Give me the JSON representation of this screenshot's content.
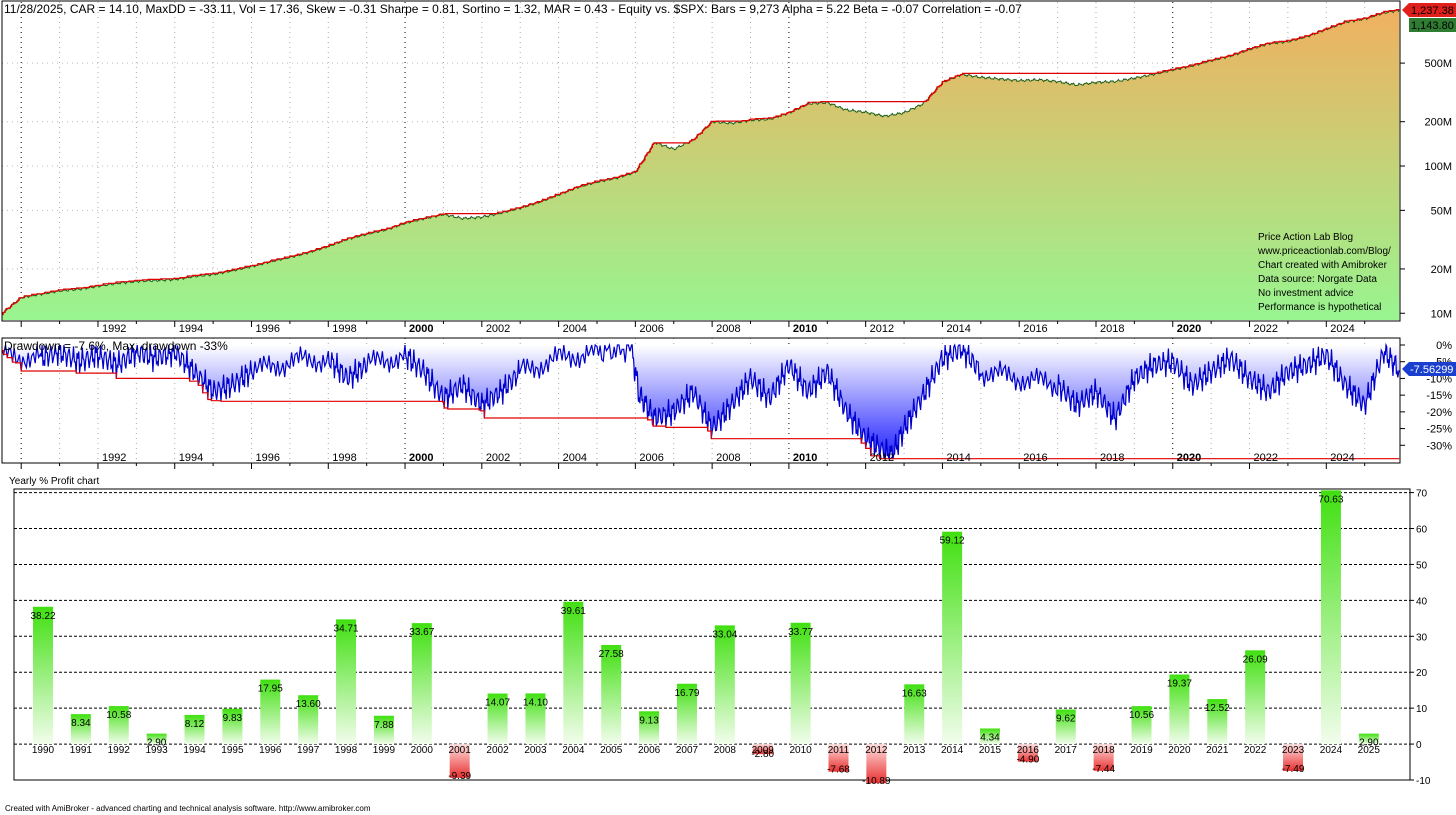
{
  "header": {
    "stats_line": "11/28/2025, CAR = 14.10, MaxDD = -33.11, Vol = 17.36, Skew = -0.31 Sharpe = 0.81, Sortino = 1.32, MAR = 0.43 - Equity vs. $SPX:  Bars = 9,273 Alpha = 5.22 Beta = -0.07 Correlation = -0.07"
  },
  "equity_panel": {
    "price_badges": [
      "1,237.38",
      "1,143.80"
    ],
    "badge_colors": [
      "#e0201a",
      "#2e7d32"
    ],
    "notes": [
      "Price Action Lab Blog",
      "www.priceactionlab.com/Blog/",
      "Chart created with Amibroker",
      "Data source: Norgate Data",
      "No investment advice",
      "Performance is hypothetical"
    ],
    "y_ticks": [
      "500M",
      "200M",
      "100M",
      "50M",
      "20M",
      "10M"
    ],
    "x_ticks": [
      {
        "label": "1992",
        "bold": false
      },
      {
        "label": "1994",
        "bold": false
      },
      {
        "label": "1996",
        "bold": false
      },
      {
        "label": "1998",
        "bold": false
      },
      {
        "label": "2000",
        "bold": true
      },
      {
        "label": "2002",
        "bold": false
      },
      {
        "label": "2004",
        "bold": false
      },
      {
        "label": "2006",
        "bold": false
      },
      {
        "label": "2008",
        "bold": false
      },
      {
        "label": "2010",
        "bold": true
      },
      {
        "label": "2012",
        "bold": false
      },
      {
        "label": "2014",
        "bold": false
      },
      {
        "label": "2016",
        "bold": false
      },
      {
        "label": "2018",
        "bold": false
      },
      {
        "label": "2020",
        "bold": true
      },
      {
        "label": "2022",
        "bold": false
      },
      {
        "label": "2024",
        "bold": false
      }
    ],
    "colors": {
      "area_top": "#f0b060",
      "area_bottom": "#98f590",
      "line": "#1a5e1a",
      "peak": "#e00000"
    }
  },
  "drawdown_panel": {
    "title": "Drawdown = -7.6%, Max. drawdown -33%",
    "value_badge": "-7.56299",
    "y_ticks": [
      "0%",
      "-5%",
      "-10%",
      "-15%",
      "-20%",
      "-25%",
      "-30%"
    ],
    "colors": {
      "line": "#0000cc",
      "fill": "#2020ff",
      "max_line": "#e00000"
    }
  },
  "chart_data": [
    {
      "type": "area",
      "title": "",
      "ylabel": "",
      "x_range": [
        1989.5,
        2025.92
      ],
      "y_scale": "log",
      "ylim": [
        9000000,
        1300000000
      ],
      "series": [
        {
          "x": [
            1989.5,
            1990.0,
            1990.5,
            1991.0,
            1991.5,
            1992.0,
            1992.5,
            1993.0,
            1993.5,
            1994.0,
            1994.5,
            1995.0,
            1995.5,
            1996.0,
            1996.5,
            1997.0,
            1997.5,
            1998.0,
            1998.5,
            1999.0,
            1999.5,
            2000.0,
            2000.5,
            2001.0,
            2001.5,
            2002.0,
            2002.5,
            2003.0,
            2003.5,
            2004.0,
            2004.5,
            2005.0,
            2005.5,
            2006.0,
            2006.5,
            2007.0,
            2007.5,
            2008.0,
            2008.5,
            2009.0,
            2009.5,
            2010.0,
            2010.5,
            2011.0,
            2011.5,
            2012.0,
            2012.5,
            2013.0,
            2013.5,
            2014.0,
            2014.5,
            2015.0,
            2015.5,
            2016.0,
            2016.5,
            2017.0,
            2017.5,
            2018.0,
            2018.5,
            2019.0,
            2019.5,
            2020.0,
            2020.5,
            2021.0,
            2021.5,
            2022.0,
            2022.5,
            2023.0,
            2023.5,
            2024.0,
            2024.5,
            2025.0,
            2025.5,
            2025.9
          ],
          "values": [
            10000000,
            12800000,
            13500000,
            14200000,
            14600000,
            15300000,
            16000000,
            16500000,
            16700000,
            17000000,
            17800000,
            18400000,
            19500000,
            20800000,
            22500000,
            24000000,
            26000000,
            28500000,
            32000000,
            34500000,
            37000000,
            41000000,
            44000000,
            47000000,
            44000000,
            45000000,
            48000000,
            52000000,
            57000000,
            64000000,
            72000000,
            78000000,
            83000000,
            91000000,
            145000000,
            130000000,
            150000000,
            200000000,
            195000000,
            205000000,
            208000000,
            230000000,
            265000000,
            270000000,
            240000000,
            232000000,
            218000000,
            230000000,
            265000000,
            370000000,
            420000000,
            400000000,
            390000000,
            380000000,
            385000000,
            375000000,
            355000000,
            370000000,
            375000000,
            395000000,
            420000000,
            450000000,
            480000000,
            520000000,
            560000000,
            620000000,
            680000000,
            700000000,
            760000000,
            850000000,
            950000000,
            1000000000,
            1100000000,
            1143800000
          ]
        }
      ]
    },
    {
      "type": "area",
      "title": "Drawdown",
      "ylabel": "",
      "ylim": [
        -35,
        0
      ],
      "series": [
        {
          "name": "Drawdown",
          "x": [
            1989.5,
            1990.5,
            1991.0,
            1991.5,
            1992.0,
            1992.5,
            1993.0,
            1993.5,
            1994.0,
            1994.5,
            1995.0,
            1995.5,
            1996.0,
            1997.0,
            1998.0,
            1998.5,
            1999.0,
            2000.0,
            2000.5,
            2001.0,
            2001.5,
            2002.0,
            2002.5,
            2003.0,
            2004.0,
            2005.0,
            2005.9,
            2006.1,
            2006.5,
            2007.0,
            2007.5,
            2008.0,
            2008.5,
            2009.0,
            2009.5,
            2010.0,
            2010.5,
            2011.0,
            2011.5,
            2012.0,
            2012.5,
            2012.7,
            2013.0,
            2013.5,
            2014.0,
            2014.5,
            2015.0,
            2016.0,
            2017.0,
            2017.5,
            2018.0,
            2018.5,
            2019.0,
            2019.5,
            2020.0,
            2020.5,
            2021.0,
            2021.5,
            2022.0,
            2022.5,
            2023.0,
            2023.5,
            2024.0,
            2024.5,
            2025.0,
            2025.5,
            2025.9
          ],
          "values": [
            -3,
            -4,
            -2,
            -5,
            -3,
            -6,
            -2,
            -4,
            -2,
            -8,
            -14,
            -12,
            -8,
            -5,
            -4,
            -10,
            -6,
            -3,
            -8,
            -16,
            -12,
            -18,
            -14,
            -8,
            -4,
            -2,
            -1,
            -15,
            -22,
            -20,
            -14,
            -25,
            -18,
            -10,
            -16,
            -6,
            -14,
            -8,
            -20,
            -28,
            -32,
            -33,
            -25,
            -15,
            -4,
            -1,
            -8,
            -10,
            -12,
            -18,
            -14,
            -22,
            -10,
            -6,
            -5,
            -12,
            -8,
            -4,
            -10,
            -14,
            -8,
            -6,
            -3,
            -12,
            -18,
            -2,
            -7.56
          ]
        }
      ]
    },
    {
      "type": "bar",
      "title": "Yearly % Profit chart",
      "ylim": [
        -10,
        71
      ],
      "y_ticks": [
        70,
        60,
        50,
        40,
        30,
        20,
        10,
        0,
        -10
      ],
      "categories": [
        "1990",
        "1991",
        "1992",
        "1993",
        "1994",
        "1995",
        "1996",
        "1997",
        "1998",
        "1999",
        "2000",
        "2001",
        "2002",
        "2003",
        "2004",
        "2005",
        "2006",
        "2007",
        "2008",
        "2009",
        "2010",
        "2011",
        "2012",
        "2013",
        "2014",
        "2015",
        "2016",
        "2017",
        "2018",
        "2019",
        "2020",
        "2021",
        "2022",
        "2023",
        "2024",
        "2025"
      ],
      "values": [
        38.22,
        8.34,
        10.58,
        2.9,
        8.12,
        9.83,
        17.95,
        13.6,
        34.71,
        7.88,
        33.67,
        -9.39,
        14.07,
        14.1,
        39.61,
        27.58,
        9.13,
        16.79,
        33.04,
        -2.8,
        33.77,
        -7.68,
        -10.89,
        16.63,
        59.12,
        4.34,
        -4.9,
        9.62,
        -7.44,
        10.56,
        19.37,
        12.52,
        26.09,
        -7.49,
        70.63,
        2.9
      ],
      "value_labels": [
        "38.22",
        "8.34",
        "10.58",
        "2.90",
        "8.12",
        "9.83",
        "17.95",
        "13.60",
        "34.71",
        "7.88",
        "33.67",
        "-9.39",
        "14.07",
        "14.10",
        "39.61",
        "27.58",
        "9.13",
        "16.79",
        "33.04",
        "-2.80",
        "33.77",
        "-7.68",
        "-10.89",
        "16.63",
        "59.12",
        "4.34",
        "-4.90",
        "9.62",
        "-7.44",
        "10.56",
        "19.37",
        "12.52",
        "26.09",
        "-7.49",
        "70.63",
        "2.90"
      ],
      "colors": {
        "positive": "#40e010",
        "negative": "#e83030"
      }
    }
  ],
  "footer": {
    "credit": "Created with AmiBroker - advanced charting and technical analysis software. http://www.amibroker.com"
  }
}
